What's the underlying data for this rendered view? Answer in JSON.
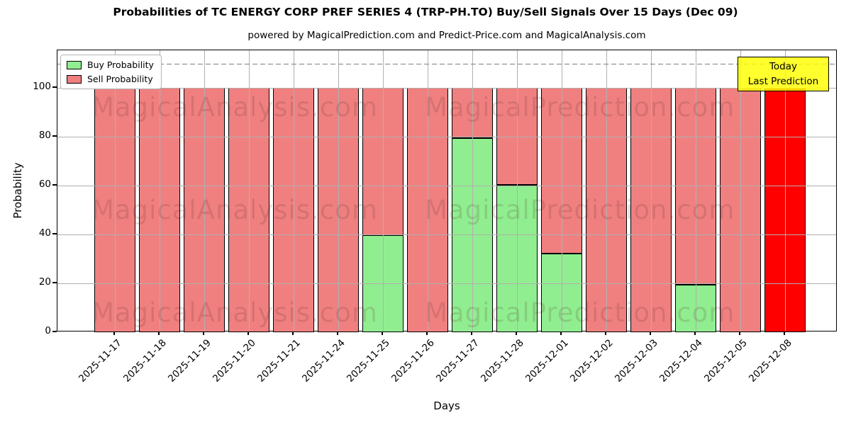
{
  "header": {
    "title": "Probabilities of TC ENERGY CORP PREF SERIES 4 (TRP-PH.TO) Buy/Sell Signals Over 15 Days (Dec 09)",
    "subtitle": "powered by MagicalPrediction.com and Predict-Price.com and MagicalAnalysis.com"
  },
  "chart_data": {
    "type": "bar",
    "stacked": true,
    "title": "Probabilities of TC ENERGY CORP PREF SERIES 4 (TRP-PH.TO) Buy/Sell Signals Over 15 Days (Dec 09)",
    "xlabel": "Days",
    "ylabel": "Probability",
    "categories": [
      "2025-11-17",
      "2025-11-18",
      "2025-11-19",
      "2025-11-20",
      "2025-11-21",
      "2025-11-24",
      "2025-11-25",
      "2025-11-26",
      "2025-11-27",
      "2025-11-28",
      "2025-12-01",
      "2025-12-02",
      "2025-12-03",
      "2025-12-04",
      "2025-12-05",
      "2025-12-08"
    ],
    "series": [
      {
        "name": "Buy Probability",
        "color": "#90ee90",
        "values": [
          0,
          0,
          0,
          0,
          0,
          0,
          39.8,
          0,
          79.5,
          60.3,
          32.1,
          0,
          0,
          19.5,
          0,
          0
        ]
      },
      {
        "name": "Sell Probability",
        "color": "#f08080",
        "values": [
          100,
          100,
          100,
          100,
          100,
          100,
          60.2,
          100,
          20.5,
          39.7,
          67.9,
          100,
          100,
          80.5,
          100,
          100
        ]
      }
    ],
    "today_bar": {
      "index": 15,
      "color": "#ff0000",
      "label_lines": [
        "Today",
        "Last Prediction"
      ],
      "bg": "#ffff00"
    },
    "yticks": [
      0,
      20,
      40,
      60,
      80,
      100
    ],
    "ylim": [
      0,
      115.4
    ],
    "dashed_line_y": 110,
    "grid": true,
    "legend_position": "top-left",
    "watermarks": [
      "MagicalAnalysis.com",
      "MagicalPrediction.com"
    ]
  },
  "colors": {
    "buy": "#90ee90",
    "sell": "#f08080",
    "today": "#ff0000",
    "annotation_bg": "#ffff00",
    "grid": "#b0b0b0",
    "dashed": "#808080"
  }
}
